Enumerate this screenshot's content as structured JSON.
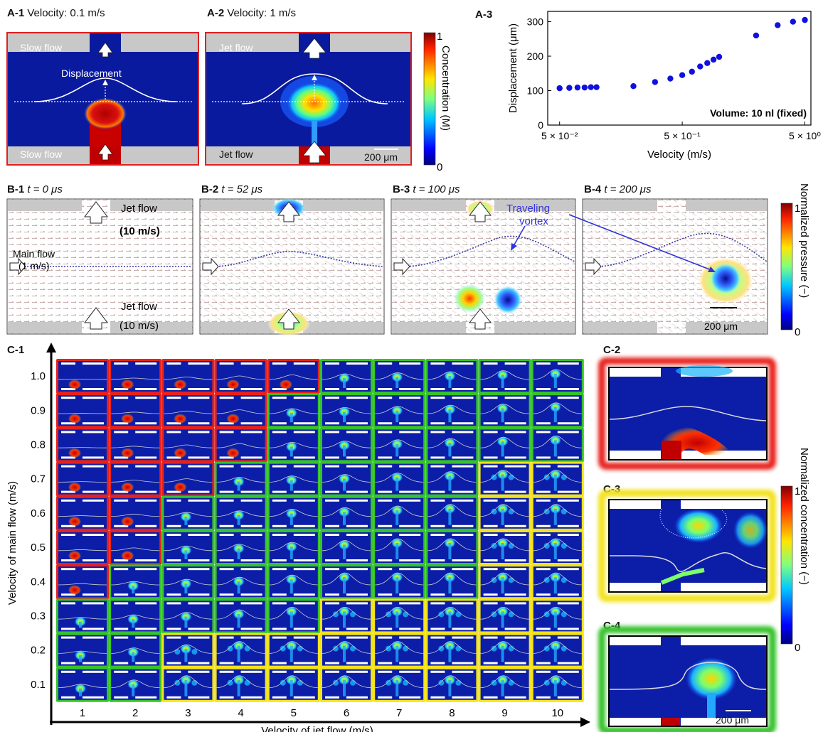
{
  "panelA": {
    "a1_id": "A-1",
    "a1_caption": "Velocity: 0.1 m/s",
    "a1_top": "Slow flow",
    "a1_bottom": "Slow flow",
    "a1_disp": "Displacement",
    "a2_id": "A-2",
    "a2_caption": "Velocity: 1 m/s",
    "a2_top": "Jet flow",
    "a2_bottom": "Jet flow",
    "a2_scale": "200 μm",
    "cb_max": "1",
    "cb_min": "0",
    "cb_label": "Concentration (M)"
  },
  "chart_data": {
    "type": "scatter",
    "panel_id": "A-3",
    "xlabel": "Velocity (m/s)",
    "ylabel": "Displacement (μm)",
    "x_scale": "log",
    "xlim": [
      0.04,
      5.6
    ],
    "ylim": [
      0,
      330
    ],
    "yticks": [
      0,
      100,
      200,
      300
    ],
    "xtick_labels": [
      "5 × 10⁻²",
      "5 × 10⁻¹",
      "5 × 10⁰"
    ],
    "xtick_values": [
      0.05,
      0.5,
      5
    ],
    "annotation": "Volume: 10 nl (fixed)",
    "color": "#1010e0",
    "series": [
      {
        "x": [
          0.05,
          0.06,
          0.07,
          0.08,
          0.09,
          0.1,
          0.2,
          0.3,
          0.4,
          0.5,
          0.6,
          0.7,
          0.8,
          0.9,
          1.0,
          2.0,
          3.0,
          4.0,
          5.0
        ],
        "y": [
          107,
          108,
          109,
          109,
          110,
          110,
          113,
          125,
          135,
          145,
          155,
          170,
          180,
          190,
          198,
          260,
          290,
          300,
          305
        ]
      }
    ]
  },
  "panelB": {
    "b1_id": "B-1",
    "b1_time": "t = 0 μs",
    "b2_id": "B-2",
    "b2_time": "t = 52 μs",
    "b3_id": "B-3",
    "b3_time": "t = 100 μs",
    "b4_id": "B-4",
    "b4_time": "t = 200 μs",
    "jet_top": "Jet flow",
    "jet_top_speed": "(10 m/s)",
    "main_flow": "Main flow",
    "main_flow_speed": "(1 m/s)",
    "jet_bottom": "Jet flow",
    "jet_bottom_speed": "(10 m/s)",
    "vortex": "Traveling vortex",
    "scale": "200 μm",
    "cb_max": "1",
    "cb_min": "0",
    "cb_label": "Normalized pressure (−)"
  },
  "panelC": {
    "c1_id": "C-1",
    "c2_id": "C-2",
    "c3_id": "C-3",
    "c4_id": "C-4",
    "ylabel": "Velocity of main flow (m/s)",
    "xlabel": "Velocity of jet flow (m/s)",
    "rows": [
      "1.0",
      "0.9",
      "0.8",
      "0.7",
      "0.6",
      "0.5",
      "0.4",
      "0.3",
      "0.2",
      "0.1"
    ],
    "cols": [
      "1",
      "2",
      "3",
      "4",
      "5",
      "6",
      "7",
      "8",
      "9",
      "10"
    ],
    "regime_grid": [
      "RRRRRGGGGG",
      "RRRRGGGGGG",
      "RRRRGGGGGG",
      "RRRGGGGGYY",
      "RRGGGGGGYY",
      "RRGGGGGGYY",
      "RGGGGGGGYY",
      "GGGGGYYYYY",
      "GGYYYYYYYY",
      "GGYYYYYYYY"
    ],
    "regime_colors": {
      "R": "#e8211b",
      "G": "#36c22a",
      "Y": "#f2e21a"
    },
    "scale": "200 μm",
    "cb_max": "1",
    "cb_min": "0",
    "cb_label": "Normalized concentration (−)"
  }
}
